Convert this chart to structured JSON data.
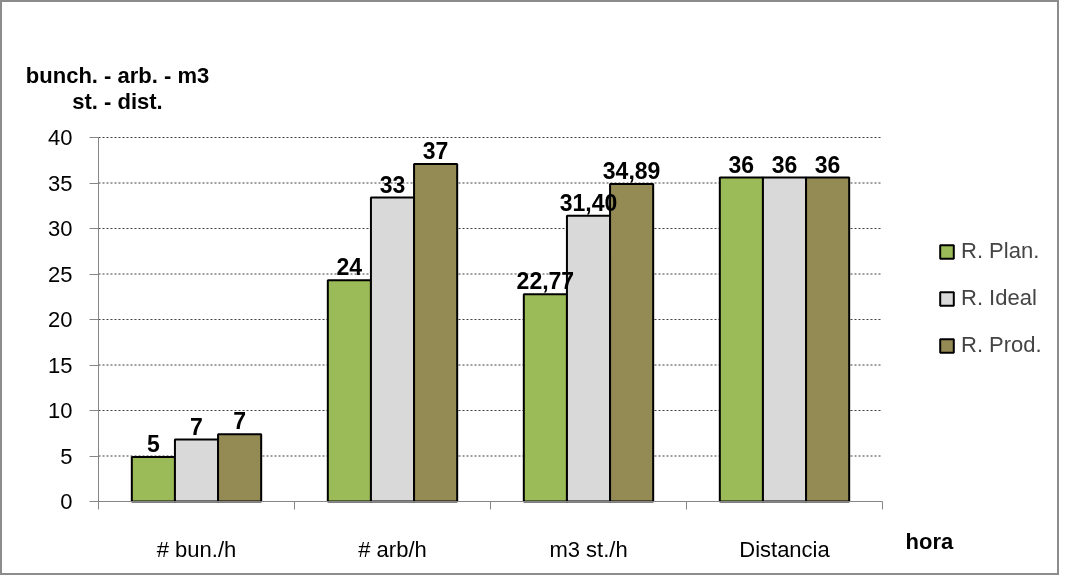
{
  "chart_data": {
    "type": "bar",
    "ylabel": "bunch. - arb. - m3\nst. - dist.",
    "xlabel": "hora",
    "categories": [
      "# bun./h",
      "# arb/h",
      "m3 st./h",
      "Distancia"
    ],
    "series": [
      {
        "name": "R. Plan.",
        "color": "#9bbb59",
        "values": [
          4.9,
          24.3,
          22.77,
          35.6
        ],
        "value_labels": [
          "5",
          "24",
          "22,77",
          "36"
        ]
      },
      {
        "name": "R. Ideal",
        "color": "#d9d9d9",
        "values": [
          6.8,
          33.4,
          31.4,
          35.6
        ],
        "value_labels": [
          "7",
          "33",
          "31,40",
          "36"
        ]
      },
      {
        "name": "R. Prod.",
        "color": "#948a54",
        "values": [
          7.4,
          37.1,
          34.89,
          35.6
        ],
        "value_labels": [
          "7",
          "37",
          "34,89",
          "36"
        ]
      }
    ],
    "ylim": [
      0,
      40
    ],
    "yticks": [
      0,
      5,
      10,
      15,
      20,
      25,
      30,
      35,
      40
    ],
    "grid": "y",
    "legend": "right"
  }
}
